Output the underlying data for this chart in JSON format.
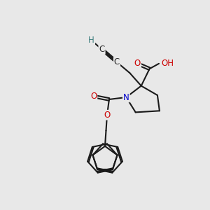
{
  "background_color": "#e8e8e8",
  "bond_color": "#1a1a1a",
  "bond_width": 1.5,
  "dbo": 0.06,
  "tbo": 0.055,
  "atom_colors": {
    "O": "#cc0000",
    "N": "#0000cc",
    "C": "#2a2a2a",
    "H": "#408080"
  },
  "fontsize": 8.5
}
